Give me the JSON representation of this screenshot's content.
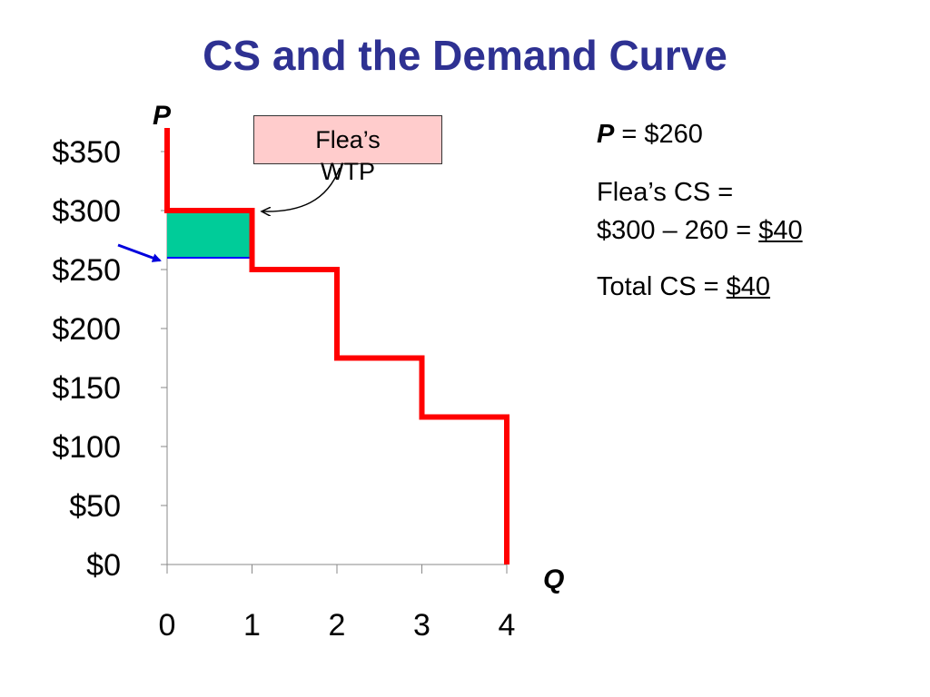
{
  "title": "CS and the Demand Curve",
  "chart_data": {
    "type": "line",
    "xlabel": "Q",
    "ylabel": "P",
    "x_ticks": [
      "0",
      "1",
      "2",
      "3",
      "4"
    ],
    "y_ticks": [
      "$0",
      "$50",
      "$100",
      "$150",
      "$200",
      "$250",
      "$300",
      "$350"
    ],
    "xlim": [
      0,
      4
    ],
    "ylim": [
      0,
      350
    ],
    "series": [
      {
        "steps": [
          {
            "x": 0,
            "y": 370
          },
          {
            "x": 0,
            "y": 300
          },
          {
            "x": 1,
            "y": 300
          },
          {
            "x": 1,
            "y": 250
          },
          {
            "x": 2,
            "y": 250
          },
          {
            "x": 2,
            "y": 175
          },
          {
            "x": 3,
            "y": 175
          },
          {
            "x": 3,
            "y": 125
          },
          {
            "x": 4,
            "y": 125
          },
          {
            "x": 4,
            "y": 0
          }
        ]
      }
    ],
    "price_line": 260,
    "consumer_surplus_area": {
      "x0": 0,
      "x1": 1,
      "y0": 260,
      "y1": 300
    },
    "grid": false
  },
  "callout": {
    "text_line1": "Flea’s",
    "text_line2": "WTP"
  },
  "info": {
    "price_var": "P",
    "price_rest": " = $260",
    "flea_cs_label": "Flea’s CS =",
    "flea_cs_calc": "$300 – 260 = ",
    "flea_cs_value": "$40",
    "total_cs_label": "Total CS = ",
    "total_cs_value": "$40"
  },
  "colors": {
    "title": "#2e3192",
    "demand_curve": "#ff0000",
    "surplus_fill": "#00cc99",
    "price_line": "#0000ff",
    "pointer_arrow": "#0000dd",
    "callout_bg": "#ffcccc"
  }
}
